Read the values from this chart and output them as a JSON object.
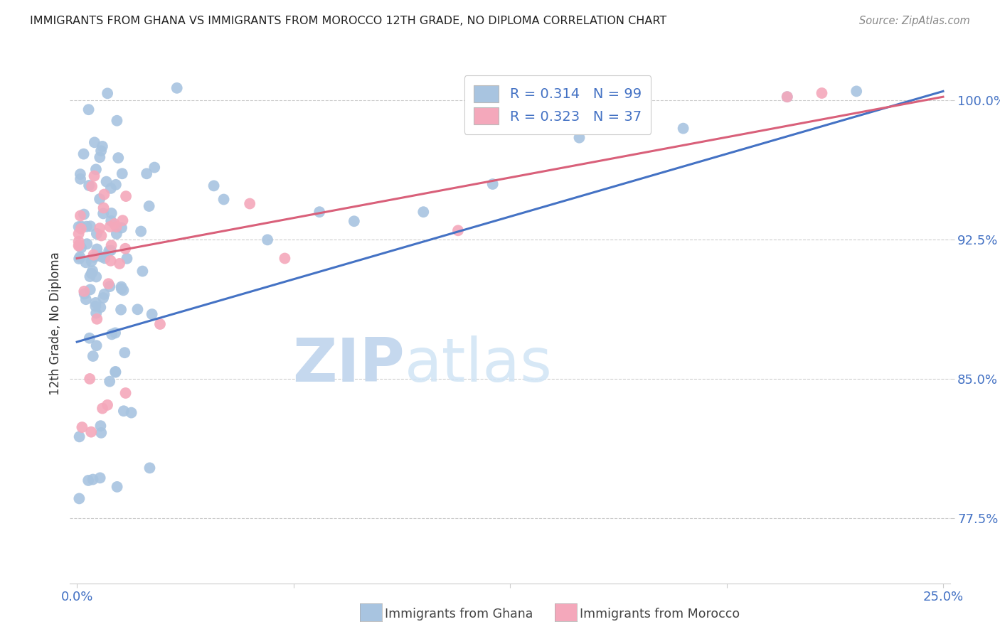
{
  "title": "IMMIGRANTS FROM GHANA VS IMMIGRANTS FROM MOROCCO 12TH GRADE, NO DIPLOMA CORRELATION CHART",
  "source": "Source: ZipAtlas.com",
  "ylabel_label": "12th Grade, No Diploma",
  "legend_ghana": "Immigrants from Ghana",
  "legend_morocco": "Immigrants from Morocco",
  "R_ghana": "0.314",
  "N_ghana": "99",
  "R_morocco": "0.323",
  "N_morocco": "37",
  "ghana_color": "#a8c4e0",
  "morocco_color": "#f4a8bb",
  "ghana_line_color": "#4472c4",
  "morocco_line_color": "#d9607a",
  "text_color": "#4472c4",
  "label_color": "#333333",
  "background_color": "#ffffff",
  "grid_color": "#cccccc",
  "yticks": [
    77.5,
    85.0,
    92.5,
    100.0
  ],
  "yticklabels": [
    "77.5%",
    "85.0%",
    "92.5%",
    "100.0%"
  ],
  "xtick_labels_show": [
    "0.0%",
    "25.0%"
  ],
  "xlim": [
    -0.2,
    25.2
  ],
  "ylim": [
    74.0,
    102.0
  ],
  "ghana_line_x0": 0.0,
  "ghana_line_y0": 87.0,
  "ghana_line_x1": 25.0,
  "ghana_line_y1": 100.5,
  "morocco_line_x0": 0.0,
  "morocco_line_y0": 91.5,
  "morocco_line_x1": 25.0,
  "morocco_line_y1": 100.2
}
